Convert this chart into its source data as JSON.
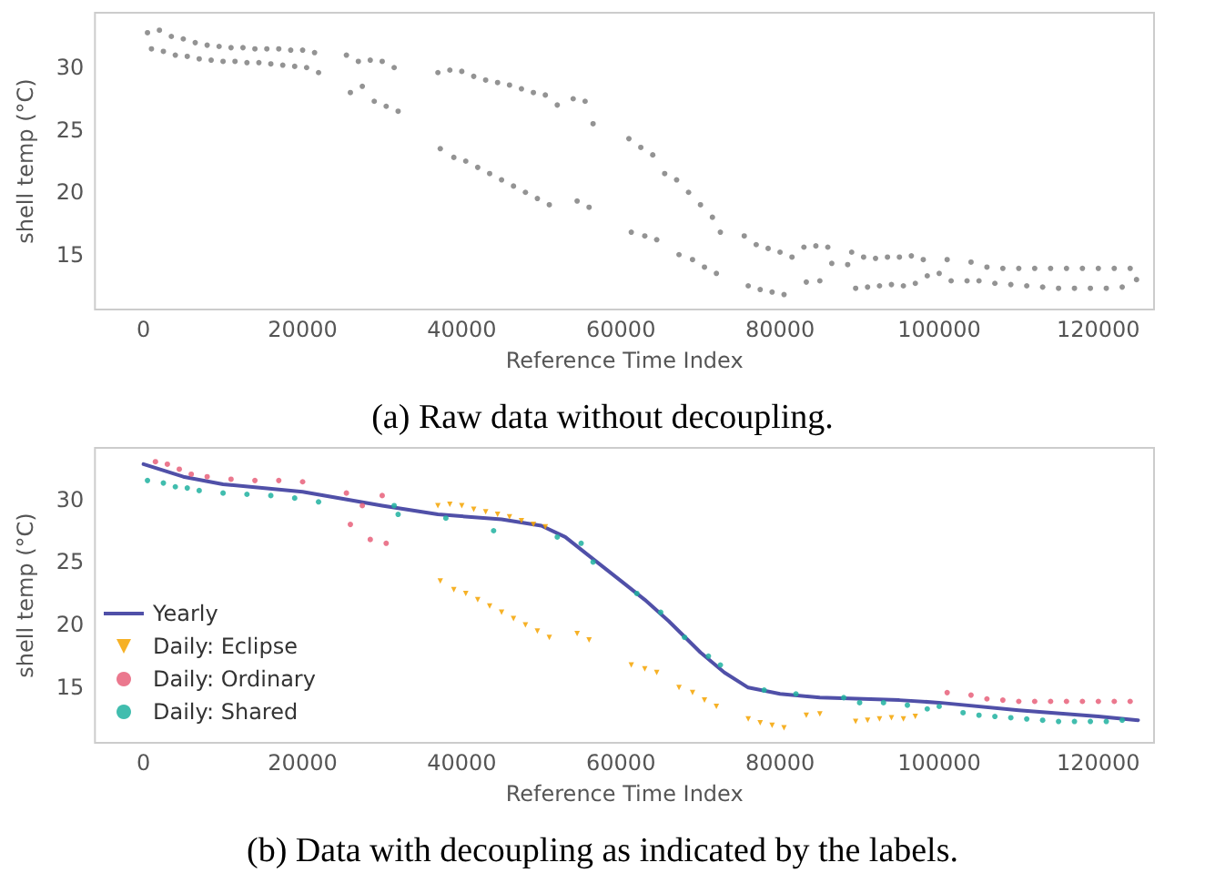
{
  "chart_data": [
    {
      "type": "scatter",
      "xlabel": "Reference Time Index",
      "ylabel": "shell temp (°C)",
      "annotations": [
        "(a) Raw data without decoupling."
      ],
      "xlim": [
        -6100,
        127000
      ],
      "ylim": [
        10.6,
        34.4
      ],
      "xticks": [
        0,
        20000,
        40000,
        60000,
        80000,
        100000,
        120000
      ],
      "yticks": [
        15,
        20,
        25,
        30
      ],
      "grid": false,
      "legend": false,
      "marker": "circle",
      "series": [
        {
          "color": "#808080",
          "x": [
            500,
            1000,
            2000,
            2500,
            3500,
            4000,
            5000,
            5500,
            6500,
            7000,
            8000,
            8500,
            9500,
            10000,
            11000,
            11500,
            12500,
            13000,
            14000,
            14500,
            15500,
            16000,
            17000,
            17500,
            18500,
            19000,
            20000,
            20500,
            21500,
            22000,
            25500,
            26000,
            27000,
            27500,
            28500,
            29000,
            30000,
            30500,
            31500,
            32000,
            37000,
            37300,
            38500,
            39000,
            40000,
            40500,
            41500,
            42000,
            43000,
            43500,
            44500,
            45000,
            46000,
            46500,
            47500,
            48000,
            49000,
            49500,
            50500,
            51000,
            52000,
            54000,
            54500,
            55500,
            56000,
            56500,
            61000,
            61300,
            62500,
            63000,
            64000,
            64500,
            65500,
            67000,
            67300,
            68500,
            69000,
            70000,
            70500,
            71500,
            72000,
            72500,
            75500,
            76000,
            77000,
            77500,
            78500,
            79000,
            80000,
            80500,
            81500,
            83000,
            83300,
            84500,
            85000,
            86000,
            86500,
            88500,
            89000,
            89500,
            90500,
            91000,
            92000,
            92500,
            93500,
            94000,
            95000,
            95500,
            96500,
            97000,
            98000,
            98500,
            100000,
            101000,
            101500,
            103500,
            104000,
            105000,
            106000,
            107000,
            108000,
            109000,
            110000,
            111000,
            112000,
            113000,
            114000,
            115000,
            116000,
            117000,
            118000,
            119000,
            120000,
            121000,
            122000,
            123000,
            124000,
            124800
          ],
          "values": [
            32.8,
            31.5,
            33.0,
            31.3,
            32.5,
            31.0,
            32.3,
            30.9,
            32.0,
            30.7,
            31.8,
            30.6,
            31.7,
            30.5,
            31.6,
            30.5,
            31.6,
            30.4,
            31.5,
            30.4,
            31.5,
            30.3,
            31.5,
            30.2,
            31.4,
            30.1,
            31.4,
            30.0,
            31.2,
            29.6,
            31.0,
            28.0,
            30.5,
            28.5,
            30.6,
            27.3,
            30.5,
            26.9,
            30.0,
            26.5,
            29.6,
            23.5,
            29.8,
            22.8,
            29.7,
            22.5,
            29.3,
            22.0,
            29.0,
            21.5,
            28.8,
            21.0,
            28.6,
            20.5,
            28.3,
            20.0,
            28.0,
            19.5,
            27.8,
            19.0,
            27.0,
            27.5,
            19.3,
            27.3,
            18.8,
            25.5,
            24.3,
            16.8,
            23.6,
            16.5,
            23.0,
            16.2,
            21.5,
            21.0,
            15.0,
            20.0,
            14.6,
            19.0,
            14.0,
            18.0,
            13.5,
            16.8,
            16.5,
            12.5,
            15.8,
            12.2,
            15.5,
            12.0,
            15.2,
            11.8,
            14.8,
            15.6,
            12.8,
            15.7,
            12.9,
            15.6,
            14.3,
            14.2,
            15.2,
            12.3,
            14.8,
            12.4,
            14.7,
            12.5,
            14.8,
            12.6,
            14.8,
            12.5,
            14.9,
            12.7,
            14.6,
            13.3,
            13.5,
            14.6,
            12.9,
            12.9,
            14.4,
            12.9,
            14.0,
            12.7,
            13.9,
            12.6,
            13.9,
            12.5,
            13.9,
            12.4,
            13.9,
            12.3,
            13.9,
            12.3,
            13.9,
            12.3,
            13.9,
            12.3,
            13.9,
            12.4,
            13.9,
            13.0
          ]
        }
      ]
    },
    {
      "type": "scatter",
      "xlabel": "Reference Time Index",
      "ylabel": "shell temp (°C)",
      "annotations": [
        "(b) Data with decoupling as indicated by the labels."
      ],
      "xlim": [
        -6100,
        127000
      ],
      "ylim": [
        10.6,
        34.1
      ],
      "xticks": [
        0,
        20000,
        40000,
        60000,
        80000,
        100000,
        120000
      ],
      "yticks": [
        15,
        20,
        25,
        30
      ],
      "grid": false,
      "legend": "bottom left",
      "marker": "circle",
      "series": [
        {
          "name": "Yearly",
          "type": "line",
          "color": "#5050a8",
          "marker": "none",
          "x": [
            0,
            5000,
            10000,
            20000,
            30000,
            37000,
            45000,
            50000,
            53000,
            56000,
            60000,
            63000,
            66000,
            70000,
            73000,
            76000,
            80000,
            85000,
            95000,
            100000,
            110000,
            120000,
            125000
          ],
          "values": [
            32.8,
            31.8,
            31.2,
            30.6,
            29.5,
            28.8,
            28.4,
            27.9,
            27.0,
            25.5,
            23.5,
            22.0,
            20.3,
            17.8,
            16.2,
            15.0,
            14.5,
            14.2,
            14.0,
            13.8,
            13.2,
            12.7,
            12.4
          ]
        },
        {
          "name": "Daily: Eclipse",
          "color": "#f5a300",
          "marker": "triangle",
          "x": [
            37000,
            37300,
            38500,
            39000,
            40000,
            40500,
            41500,
            42000,
            43000,
            43500,
            44500,
            45000,
            46000,
            46500,
            47500,
            48000,
            49000,
            49500,
            50500,
            51000,
            54500,
            56000,
            61300,
            63000,
            64500,
            67300,
            69000,
            70500,
            72000,
            76000,
            77500,
            79000,
            80500,
            83300,
            85000,
            89500,
            91000,
            92500,
            94000,
            95500,
            97000
          ],
          "values": [
            29.5,
            23.5,
            29.6,
            22.8,
            29.5,
            22.5,
            29.2,
            22.0,
            29.0,
            21.5,
            28.8,
            21.0,
            28.6,
            20.5,
            28.3,
            20.0,
            28.0,
            19.5,
            27.8,
            19.0,
            19.3,
            18.8,
            16.8,
            16.5,
            16.2,
            15.0,
            14.6,
            14.0,
            13.5,
            12.5,
            12.2,
            12.0,
            11.8,
            12.8,
            12.9,
            12.3,
            12.4,
            12.5,
            12.6,
            12.5,
            12.7
          ]
        },
        {
          "name": "Daily: Ordinary",
          "color": "#e8607a",
          "x": [
            1500,
            3000,
            4500,
            6000,
            8000,
            11000,
            14000,
            17000,
            20000,
            25500,
            26000,
            27500,
            28500,
            30000,
            30500,
            101000,
            104000,
            106000,
            108000,
            110000,
            112000,
            114000,
            116000,
            118000,
            120000,
            122000,
            124000
          ],
          "values": [
            33.0,
            32.8,
            32.4,
            32.0,
            31.8,
            31.6,
            31.5,
            31.5,
            31.4,
            30.5,
            28.0,
            29.5,
            26.8,
            30.3,
            26.5,
            14.6,
            14.4,
            14.1,
            14.0,
            13.9,
            13.9,
            13.9,
            13.9,
            13.9,
            13.9,
            13.9,
            13.9
          ]
        },
        {
          "name": "Daily: Shared",
          "color": "#20b2a0",
          "x": [
            500,
            2500,
            4000,
            5500,
            7000,
            10000,
            13000,
            16000,
            19000,
            22000,
            31500,
            32000,
            38000,
            44000,
            52000,
            55000,
            56500,
            62000,
            65000,
            68000,
            71000,
            72500,
            78000,
            82000,
            88000,
            90000,
            93000,
            96000,
            98500,
            100000,
            103000,
            105000,
            107000,
            109000,
            111000,
            113000,
            115000,
            117000,
            119000,
            121000,
            123000
          ],
          "values": [
            31.5,
            31.3,
            31.0,
            30.9,
            30.7,
            30.5,
            30.4,
            30.3,
            30.1,
            29.8,
            29.5,
            28.8,
            28.5,
            27.5,
            27.0,
            26.5,
            25.0,
            22.5,
            21.0,
            19.0,
            17.5,
            16.8,
            14.8,
            14.5,
            14.2,
            13.8,
            13.8,
            13.6,
            13.3,
            13.5,
            13.0,
            12.8,
            12.7,
            12.6,
            12.5,
            12.4,
            12.3,
            12.3,
            12.3,
            12.3,
            12.4
          ]
        }
      ]
    }
  ]
}
